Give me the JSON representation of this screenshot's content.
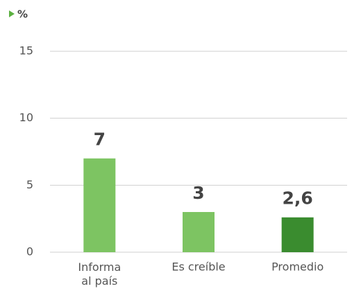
{
  "chart_data": {
    "type": "bar",
    "y_label": "%",
    "categories": [
      "Informa al país",
      "Es creíble",
      "Promedio"
    ],
    "values": [
      7,
      3,
      2.6
    ],
    "value_labels": [
      "7",
      "3",
      "2,6"
    ],
    "colors": [
      "#7dc462",
      "#7dc462",
      "#3a8c2f"
    ],
    "ylim": [
      0,
      15
    ],
    "yticks": [
      0,
      5,
      10,
      15
    ],
    "grid": true
  }
}
